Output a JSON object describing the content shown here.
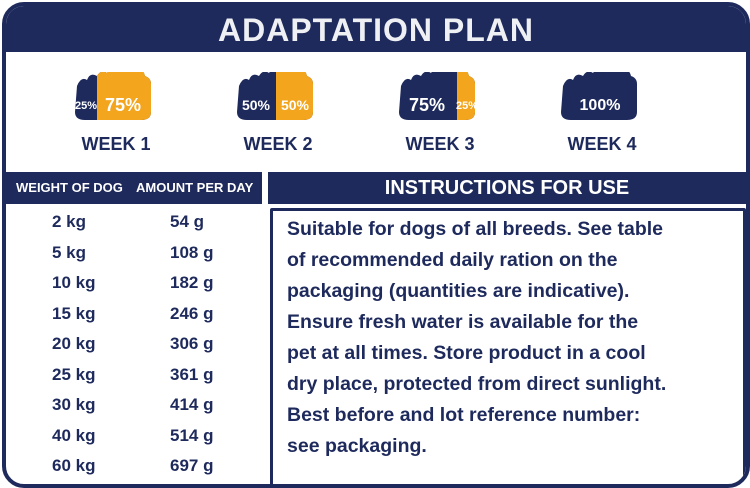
{
  "header": {
    "title": "ADAPTATION PLAN"
  },
  "weeks": [
    {
      "label": "WEEK 1",
      "old_share": "25%",
      "new_share": "75%"
    },
    {
      "label": "WEEK 2",
      "old_share": "50%",
      "new_share": "50%"
    },
    {
      "label": "WEEK 3",
      "old_share": "75%",
      "new_share": "25%"
    },
    {
      "label": "WEEK 4",
      "new_share": "100%"
    }
  ],
  "table": {
    "headers": [
      "WEIGHT OF DOG",
      "AMOUNT PER DAY"
    ],
    "rows": [
      [
        "2 kg",
        "54 g"
      ],
      [
        "5 kg",
        "108 g"
      ],
      [
        "10 kg",
        "182 g"
      ],
      [
        "15 kg",
        "246 g"
      ],
      [
        "20 kg",
        "306 g"
      ],
      [
        "25 kg",
        "361 g"
      ],
      [
        "30 kg",
        "414 g"
      ],
      [
        "40 kg",
        "514 g"
      ],
      [
        "60 kg",
        "697 g"
      ]
    ]
  },
  "instructions": {
    "title": "INSTRUCTIONS FOR USE",
    "lines": [
      "Suitable for dogs of all breeds. See table",
      "of recommended daily ration on the",
      "packaging (quantities are indicative).",
      "Ensure fresh water is available for the",
      "pet at all times. Store product in a cool",
      "dry place, protected from direct sunlight.",
      "Best before and lot reference number:",
      "see packaging."
    ]
  }
}
